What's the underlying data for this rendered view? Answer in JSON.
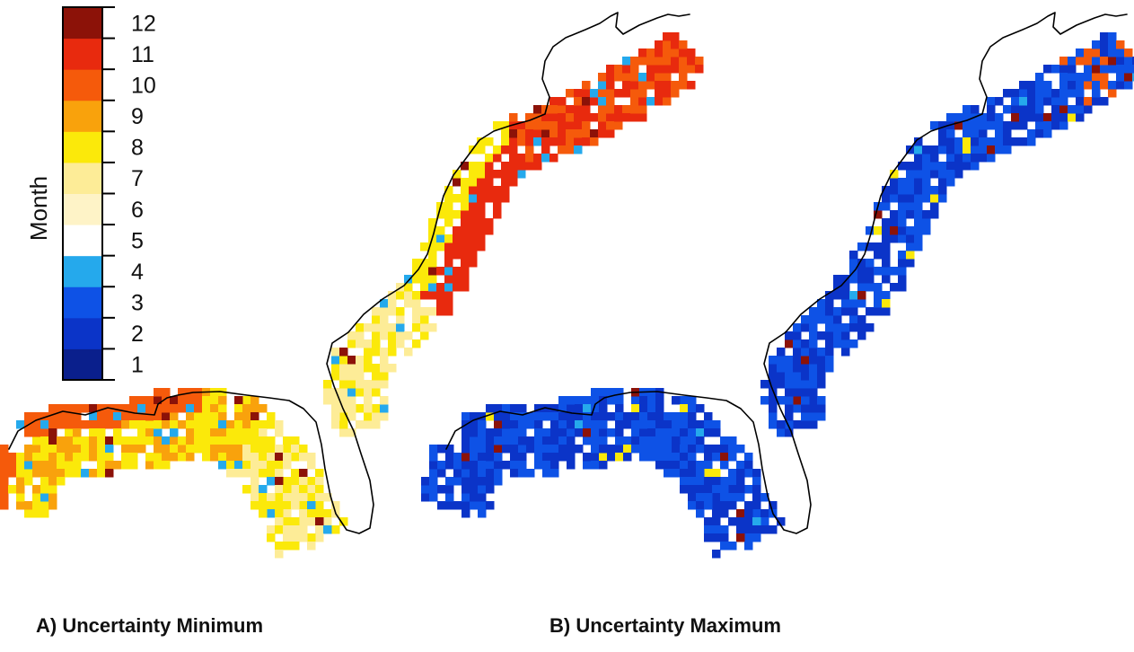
{
  "legend": {
    "title": "Month",
    "months": [
      {
        "label": "1",
        "color": "#0a1f8c"
      },
      {
        "label": "2",
        "color": "#0b34c8"
      },
      {
        "label": "3",
        "color": "#0e52e6"
      },
      {
        "label": "4",
        "color": "#25a9ec"
      },
      {
        "label": "5",
        "color": "#ffffff"
      },
      {
        "label": "6",
        "color": "#fef3c7"
      },
      {
        "label": "7",
        "color": "#fdec97"
      },
      {
        "label": "8",
        "color": "#fbe90a"
      },
      {
        "label": "9",
        "color": "#f9a20c"
      },
      {
        "label": "10",
        "color": "#f55a0b"
      },
      {
        "label": "11",
        "color": "#e82a0e"
      },
      {
        "label": "12",
        "color": "#8c1208"
      }
    ]
  },
  "panels": [
    {
      "id": "A",
      "caption": "A) Uncertainty Minimum",
      "dominant_months": [
        "8",
        "9",
        "10",
        "11"
      ]
    },
    {
      "id": "B",
      "caption": "B) Uncertainty Maximum",
      "dominant_months": [
        "2",
        "3"
      ]
    }
  ]
}
